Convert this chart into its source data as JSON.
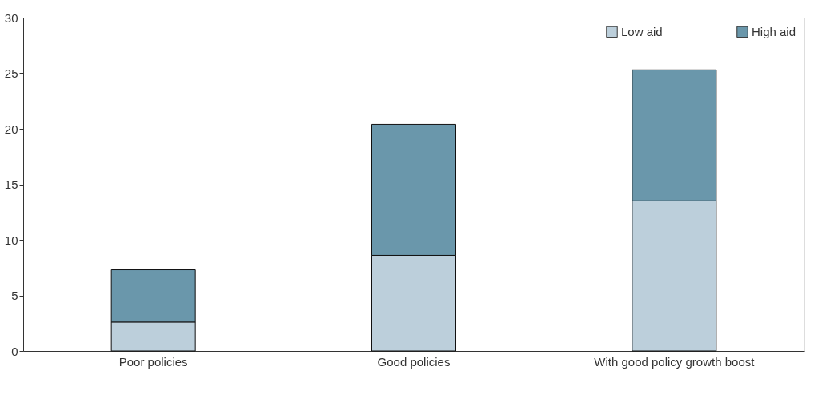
{
  "chart_data": {
    "type": "bar",
    "stacked": true,
    "categories": [
      "Poor policies",
      "Good policies",
      "With good policy growth boost"
    ],
    "series": [
      {
        "name": "Low aid",
        "color": "#bccfdb",
        "values": [
          2.6,
          8.6,
          13.5
        ]
      },
      {
        "name": "High aid",
        "color": "#6a97ab",
        "values": [
          4.7,
          11.8,
          11.8
        ]
      }
    ],
    "ylim": [
      0,
      30
    ],
    "yticks": [
      0,
      5,
      10,
      15,
      20,
      25,
      30
    ],
    "grid": false,
    "legend": "top right"
  }
}
